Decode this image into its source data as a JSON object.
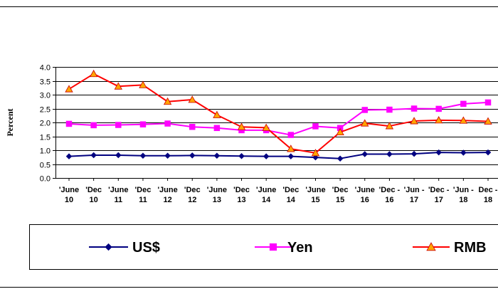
{
  "chart_data": {
    "type": "line",
    "ylabel": "Percent",
    "xlabel": "",
    "ylim": [
      0,
      4
    ],
    "yticks": [
      "0.0",
      "0.5",
      "1.0",
      "1.5",
      "2.0",
      "2.5",
      "3.0",
      "3.5",
      "4.0"
    ],
    "grid": true,
    "legend_position": "bottom",
    "categories": [
      [
        "'June",
        "10"
      ],
      [
        "'Dec",
        "10"
      ],
      [
        "'June",
        "11"
      ],
      [
        "'Dec",
        "11"
      ],
      [
        "'June",
        "12"
      ],
      [
        "'Dec",
        "12"
      ],
      [
        "'June",
        "13"
      ],
      [
        "'Dec",
        "13"
      ],
      [
        "'June",
        "14"
      ],
      [
        "'Dec",
        "14"
      ],
      [
        "'June",
        "15"
      ],
      [
        "'Dec",
        "15"
      ],
      [
        "'June",
        "16"
      ],
      [
        "'Dec -",
        "16"
      ],
      [
        "'Jun -",
        "17"
      ],
      [
        "'Dec -",
        "17"
      ],
      [
        "'Jun -",
        "18"
      ],
      [
        "Dec -",
        "18"
      ]
    ],
    "series": [
      {
        "name": "US$",
        "color": "#000080",
        "marker": "diamond",
        "values": [
          0.78,
          0.82,
          0.82,
          0.8,
          0.8,
          0.81,
          0.8,
          0.79,
          0.78,
          0.78,
          0.74,
          0.7,
          0.86,
          0.86,
          0.87,
          0.92,
          0.91,
          0.92
        ]
      },
      {
        "name": "Yen",
        "color": "#FF00FF",
        "marker": "square",
        "values": [
          1.95,
          1.9,
          1.91,
          1.93,
          1.96,
          1.84,
          1.8,
          1.72,
          1.72,
          1.55,
          1.86,
          1.8,
          2.45,
          2.46,
          2.5,
          2.49,
          2.67,
          2.72
        ]
      },
      {
        "name": "RMB",
        "color": "#FF0000",
        "marker": "triangle",
        "markerColor": "#FFA500",
        "values": [
          3.2,
          3.75,
          3.3,
          3.35,
          2.75,
          2.82,
          2.27,
          1.84,
          1.81,
          1.05,
          0.9,
          1.65,
          1.97,
          1.87,
          2.05,
          2.08,
          2.07,
          2.04
        ]
      }
    ]
  }
}
